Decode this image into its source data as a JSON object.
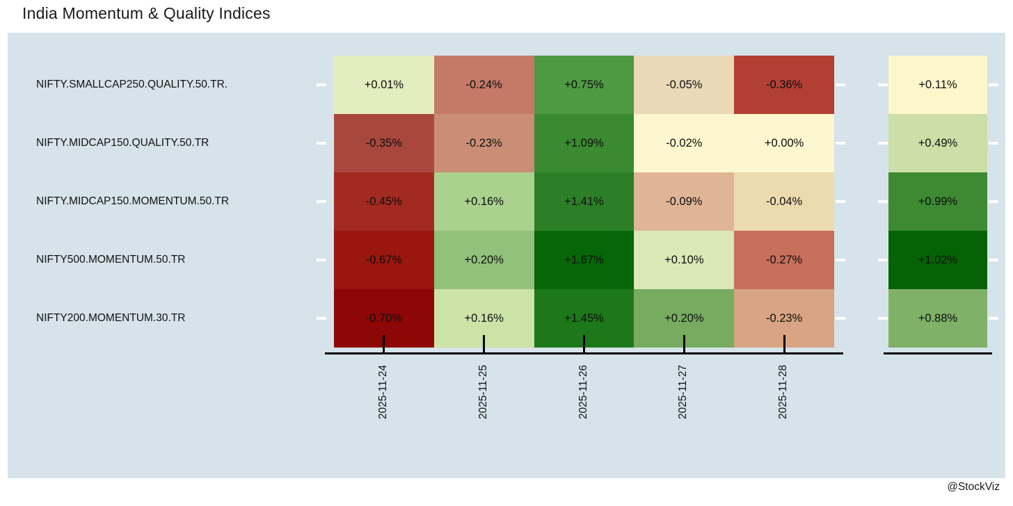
{
  "title": "India Momentum & Quality Indices",
  "watermark": "@StockViz",
  "colors": {
    "page_background": "#ffffff",
    "panel_background": "#d6e3ea",
    "axis": "#000000",
    "tick_marks": "#ffffff",
    "text": "#121212"
  },
  "chart_data": {
    "type": "heatmap",
    "title": "India Momentum & Quality Indices",
    "legend_position": "none",
    "grid": false,
    "rows": [
      "NIFTY.SMALLCAP250.QUALITY.50.TR.",
      "NIFTY.MIDCAP150.QUALITY.50.TR",
      "NIFTY.MIDCAP150.MOMENTUM.50.TR",
      "NIFTY500.MOMENTUM.50.TR",
      "NIFTY200.MOMENTUM.30.TR"
    ],
    "columns": [
      "2025-11-24",
      "2025-11-25",
      "2025-11-26",
      "2025-11-27",
      "2025-11-28"
    ],
    "values": [
      [
        "+0.01%",
        "-0.24%",
        "+0.75%",
        "-0.05%",
        "-0.36%"
      ],
      [
        "-0.35%",
        "-0.23%",
        "+1.09%",
        "-0.02%",
        "+0.00%"
      ],
      [
        "-0.45%",
        "+0.16%",
        "+1.41%",
        "-0.09%",
        "-0.04%"
      ],
      [
        "-0.67%",
        "+0.20%",
        "+1.67%",
        "+0.10%",
        "-0.27%"
      ],
      [
        "-0.70%",
        "+0.16%",
        "+1.45%",
        "+0.20%",
        "-0.23%"
      ]
    ],
    "numeric_values": [
      [
        0.01,
        -0.24,
        0.75,
        -0.05,
        -0.36
      ],
      [
        -0.35,
        -0.23,
        1.09,
        -0.02,
        0.0
      ],
      [
        -0.45,
        0.16,
        1.41,
        -0.09,
        -0.04
      ],
      [
        -0.67,
        0.2,
        1.67,
        0.1,
        -0.27
      ],
      [
        -0.7,
        0.16,
        1.45,
        0.2,
        -0.23
      ]
    ],
    "cell_colors": [
      [
        "#e4edbe",
        "#c47a67",
        "#4d9a42",
        "#ead8b6",
        "#b23f33"
      ],
      [
        "#a8483c",
        "#ca8e76",
        "#3a8a31",
        "#fcf7ce",
        "#fcf7ce"
      ],
      [
        "#a32a20",
        "#abd18e",
        "#2c7f26",
        "#dfb596",
        "#eddbb0"
      ],
      [
        "#9a170f",
        "#91c17b",
        "#076607",
        "#d9e8b4",
        "#c66f5a"
      ],
      [
        "#8d0707",
        "#cce3a8",
        "#1d7819",
        "#77ac60",
        "#d8a483"
      ]
    ],
    "summary_column": {
      "values": [
        "+0.11%",
        "+0.49%",
        "+0.99%",
        "+1.02%",
        "+0.88%"
      ],
      "numeric_values": [
        0.11,
        0.49,
        0.99,
        1.02,
        0.88
      ],
      "colors": [
        "#fcf6cb",
        "#cbdfa6",
        "#3d8a33",
        "#056305",
        "#7fb168"
      ]
    }
  }
}
